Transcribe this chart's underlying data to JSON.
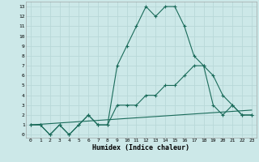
{
  "xlabel": "Humidex (Indice chaleur)",
  "bg_color": "#cce8e8",
  "grid_color": "#b8d8d8",
  "line_color": "#1a6b5a",
  "xlim": [
    -0.5,
    23.5
  ],
  "ylim": [
    -0.3,
    13.5
  ],
  "xticks": [
    0,
    1,
    2,
    3,
    4,
    5,
    6,
    7,
    8,
    9,
    10,
    11,
    12,
    13,
    14,
    15,
    16,
    17,
    18,
    19,
    20,
    21,
    22,
    23
  ],
  "yticks": [
    0,
    1,
    2,
    3,
    4,
    5,
    6,
    7,
    8,
    9,
    10,
    11,
    12,
    13
  ],
  "line1_x": [
    0,
    1,
    2,
    3,
    4,
    5,
    6,
    7,
    8,
    9,
    10,
    11,
    12,
    13,
    14,
    15,
    16,
    17,
    18,
    19,
    20,
    21,
    22,
    23
  ],
  "line1_y": [
    1,
    1,
    0,
    1,
    0,
    1,
    2,
    1,
    1,
    7,
    9,
    11,
    13,
    12,
    13,
    13,
    11,
    8,
    7,
    3,
    2,
    3,
    2,
    2
  ],
  "line2_x": [
    0,
    1,
    2,
    3,
    4,
    5,
    6,
    7,
    8,
    9,
    10,
    11,
    12,
    13,
    14,
    15,
    16,
    17,
    18,
    19,
    20,
    21,
    22,
    23
  ],
  "line2_y": [
    1,
    1,
    0,
    1,
    0,
    1,
    2,
    1,
    1,
    3,
    3,
    3,
    4,
    4,
    5,
    5,
    6,
    7,
    7,
    6,
    4,
    3,
    2,
    2
  ],
  "line3_x": [
    0,
    23
  ],
  "line3_y": [
    1,
    2.5
  ]
}
